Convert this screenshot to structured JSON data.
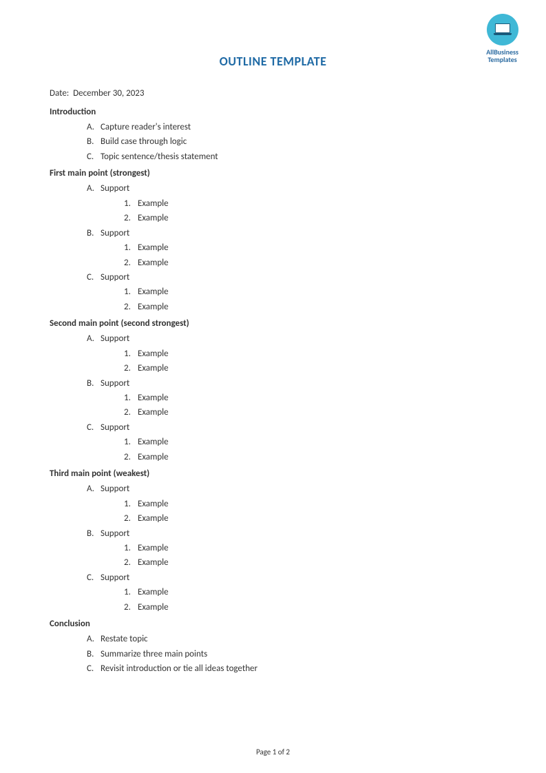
{
  "logo": {
    "line1": "AllBusiness",
    "line2": "Templates",
    "circle_color": "#3fb8d6",
    "text_color": "#2a6aa0"
  },
  "title": "OUTLINE TEMPLATE",
  "title_color": "#1f6aa5",
  "date_label": "Date:",
  "date_value": "December 30, 2023",
  "sections": [
    {
      "heading": "Introduction",
      "items": [
        {
          "marker": "A.",
          "text": "Capture reader's interest"
        },
        {
          "marker": "B.",
          "text": "Build case through logic"
        },
        {
          "marker": "C.",
          "text": "Topic sentence/thesis statement"
        }
      ]
    },
    {
      "heading": "First main point (strongest)",
      "items": [
        {
          "marker": "A.",
          "text": "Support",
          "sub": [
            {
              "marker": "1.",
              "text": "Example"
            },
            {
              "marker": "2.",
              "text": "Example"
            }
          ]
        },
        {
          "marker": "B.",
          "text": "Support",
          "sub": [
            {
              "marker": "1.",
              "text": "Example"
            },
            {
              "marker": "2.",
              "text": "Example"
            }
          ]
        },
        {
          "marker": "C.",
          "text": "Support",
          "sub": [
            {
              "marker": "1.",
              "text": "Example"
            },
            {
              "marker": "2.",
              "text": "Example"
            }
          ]
        }
      ]
    },
    {
      "heading": "Second main point (second strongest)",
      "items": [
        {
          "marker": "A.",
          "text": "Support",
          "sub": [
            {
              "marker": "1.",
              "text": "Example"
            },
            {
              "marker": "2.",
              "text": "Example"
            }
          ]
        },
        {
          "marker": "B.",
          "text": "Support",
          "sub": [
            {
              "marker": "1.",
              "text": "Example"
            },
            {
              "marker": "2.",
              "text": "Example"
            }
          ]
        },
        {
          "marker": "C.",
          "text": "Support",
          "sub": [
            {
              "marker": "1.",
              "text": "Example"
            },
            {
              "marker": "2.",
              "text": "Example"
            }
          ]
        }
      ]
    },
    {
      "heading": "Third main point (weakest)",
      "items": [
        {
          "marker": "A.",
          "text": "Support",
          "sub": [
            {
              "marker": "1.",
              "text": "Example"
            },
            {
              "marker": "2.",
              "text": "Example"
            }
          ]
        },
        {
          "marker": "B.",
          "text": "Support",
          "sub": [
            {
              "marker": "1.",
              "text": "Example"
            },
            {
              "marker": "2.",
              "text": "Example"
            }
          ]
        },
        {
          "marker": "C.",
          "text": "Support",
          "sub": [
            {
              "marker": "1.",
              "text": "Example"
            },
            {
              "marker": "2.",
              "text": "Example"
            }
          ]
        }
      ]
    },
    {
      "heading": "Conclusion",
      "items": [
        {
          "marker": "A.",
          "text": "Restate topic"
        },
        {
          "marker": "B.",
          "text": "Summarize three main points"
        },
        {
          "marker": "C.",
          "text": "Revisit introduction or tie all ideas together"
        }
      ]
    }
  ],
  "footer": "Page 1 of 2"
}
